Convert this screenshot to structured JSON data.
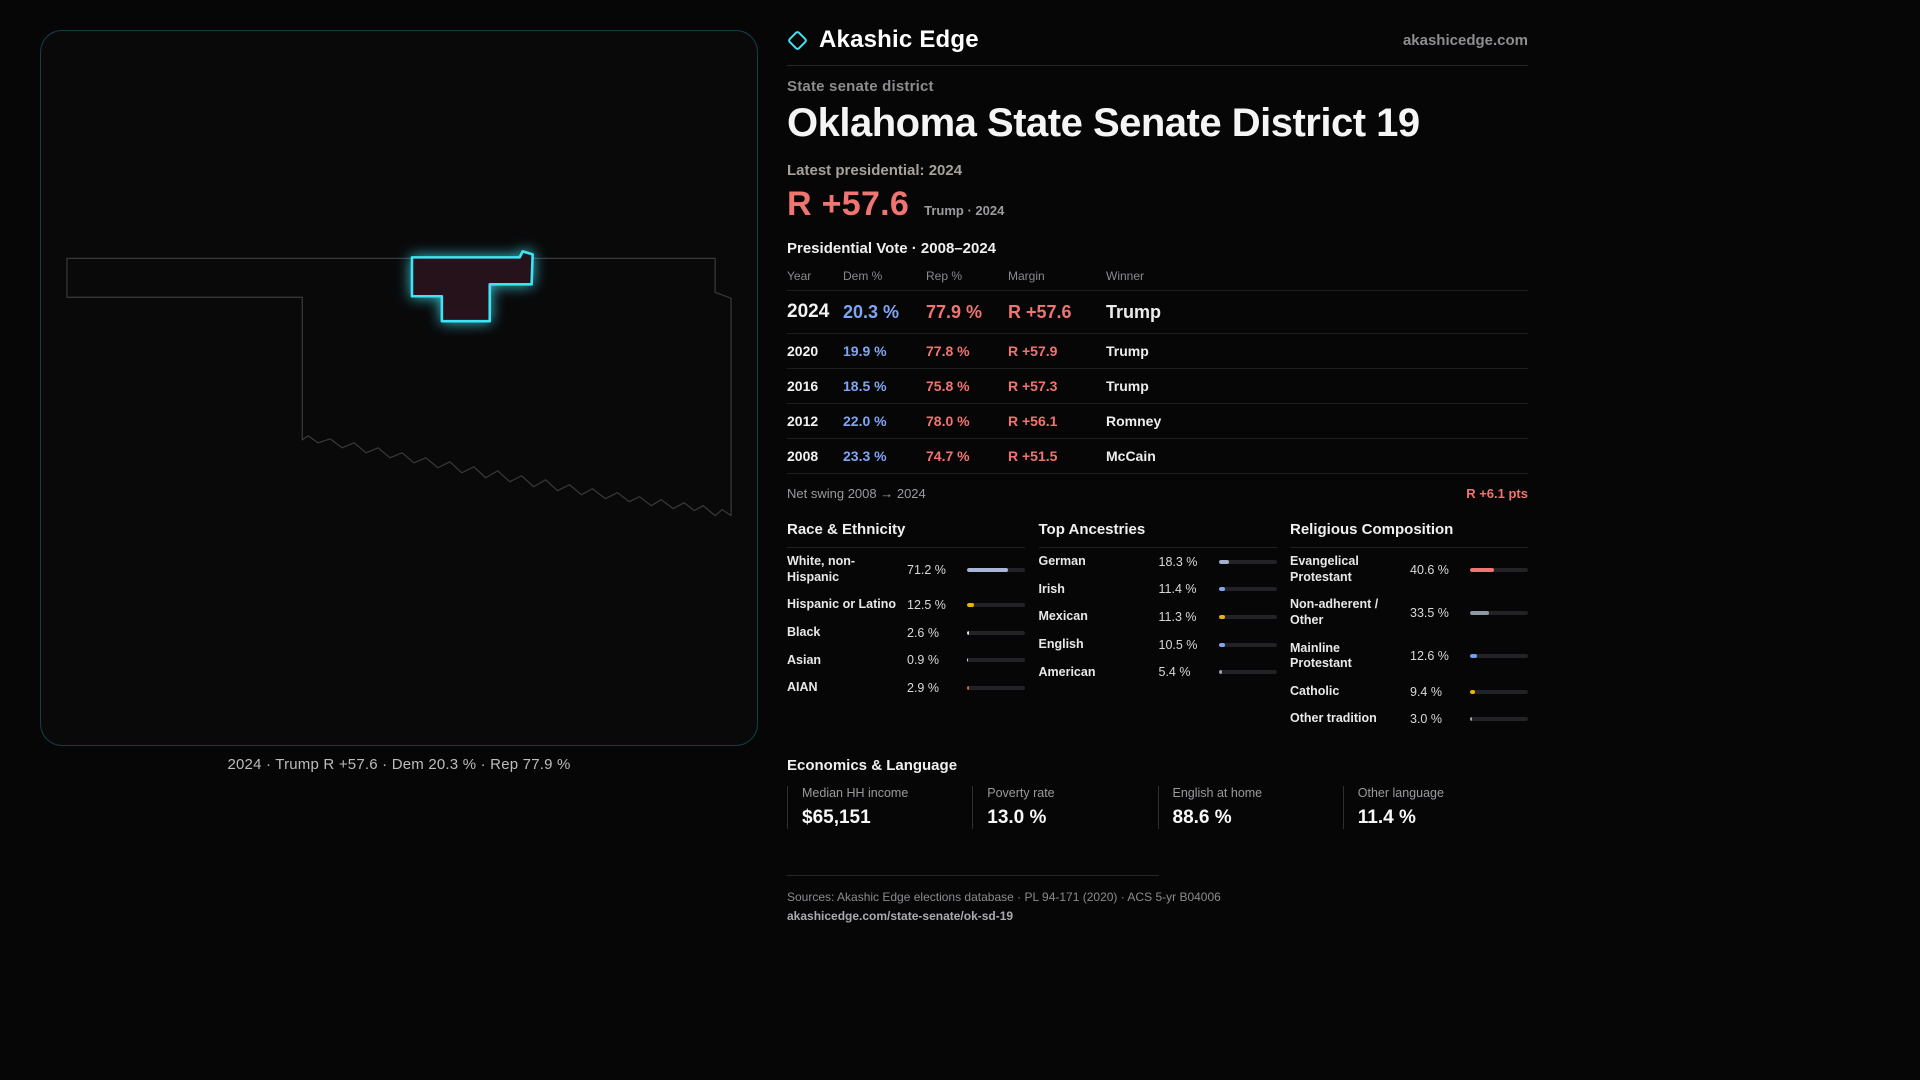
{
  "header": {
    "brand": "Akashic Edge",
    "site": "akashicedge.com"
  },
  "district": {
    "kicker": "State senate district",
    "title": "Oklahoma State Senate District 19",
    "latest_label": "Latest presidential: 2024",
    "headline_margin": "R +57.6",
    "headline_context": "Trump · 2024"
  },
  "map": {
    "caption": "2024 · Trump R +57.6 · Dem 20.3 % · Rep 77.9 %",
    "accent_color": "#3fe3f4"
  },
  "vote_table": {
    "title": "Presidential Vote · 2008–2024",
    "columns": [
      "Year",
      "Dem %",
      "Rep %",
      "Margin",
      "Winner"
    ],
    "rows": [
      {
        "year": "2024",
        "dem": "20.3 %",
        "rep": "77.9 %",
        "margin": "R +57.6",
        "winner": "Trump",
        "emphasis": true
      },
      {
        "year": "2020",
        "dem": "19.9 %",
        "rep": "77.8 %",
        "margin": "R +57.9",
        "winner": "Trump",
        "emphasis": false
      },
      {
        "year": "2016",
        "dem": "18.5 %",
        "rep": "75.8 %",
        "margin": "R +57.3",
        "winner": "Trump",
        "emphasis": false
      },
      {
        "year": "2012",
        "dem": "22.0 %",
        "rep": "78.0 %",
        "margin": "R +56.1",
        "winner": "Romney",
        "emphasis": false
      },
      {
        "year": "2008",
        "dem": "23.3 %",
        "rep": "74.7 %",
        "margin": "R +51.5",
        "winner": "McCain",
        "emphasis": false
      }
    ],
    "net_swing_label": "Net swing 2008 → 2024",
    "net_swing_value": "R +6.1 pts"
  },
  "demographics": {
    "groups": [
      {
        "title": "Race & Ethnicity",
        "items": [
          {
            "label": "White, non-Hispanic",
            "value": "71.2 %",
            "pct": 71.2,
            "color": "#a9b6d9"
          },
          {
            "label": "Hispanic or Latino",
            "value": "12.5 %",
            "pct": 12.5,
            "color": "#eab308"
          },
          {
            "label": "Black",
            "value": "2.6 %",
            "pct": 2.6,
            "color": "#dde1ea"
          },
          {
            "label": "Asian",
            "value": "0.9 %",
            "pct": 0.9,
            "color": "#dde1ea"
          },
          {
            "label": "AIAN",
            "value": "2.9 %",
            "pct": 2.9,
            "color": "#e0643f"
          }
        ]
      },
      {
        "title": "Top Ancestries",
        "items": [
          {
            "label": "German",
            "value": "18.3 %",
            "pct": 18.3,
            "color": "#a3b1cc"
          },
          {
            "label": "Irish",
            "value": "11.4 %",
            "pct": 11.4,
            "color": "#7fa6f5"
          },
          {
            "label": "Mexican",
            "value": "11.3 %",
            "pct": 11.3,
            "color": "#eab308"
          },
          {
            "label": "English",
            "value": "10.5 %",
            "pct": 10.5,
            "color": "#7fa6f5"
          },
          {
            "label": "American",
            "value": "5.4 %",
            "pct": 5.4,
            "color": "#9ca3af"
          }
        ]
      },
      {
        "title": "Religious Composition",
        "items": [
          {
            "label": "Evangelical Protestant",
            "value": "40.6 %",
            "pct": 40.6,
            "color": "#f07470"
          },
          {
            "label": "Non-adherent / Other",
            "value": "33.5 %",
            "pct": 33.5,
            "color": "#8e97a8"
          },
          {
            "label": "Mainline Protestant",
            "value": "12.6 %",
            "pct": 12.6,
            "color": "#6f9df3"
          },
          {
            "label": "Catholic",
            "value": "9.4 %",
            "pct": 9.4,
            "color": "#eab308"
          },
          {
            "label": "Other tradition",
            "value": "3.0 %",
            "pct": 3.0,
            "color": "#9ca3af"
          }
        ]
      }
    ]
  },
  "economics": {
    "title": "Economics & Language",
    "items": [
      {
        "label": "Median HH income",
        "value": "$65,151"
      },
      {
        "label": "Poverty rate",
        "value": "13.0 %"
      },
      {
        "label": "English at home",
        "value": "88.6 %"
      },
      {
        "label": "Other language",
        "value": "11.4 %"
      }
    ]
  },
  "footer": {
    "sources": "Sources: Akashic Edge elections database · PL 94-171 (2020) · ACS 5-yr B04006",
    "permalink": "akashicedge.com/state-senate/ok-sd-19"
  }
}
